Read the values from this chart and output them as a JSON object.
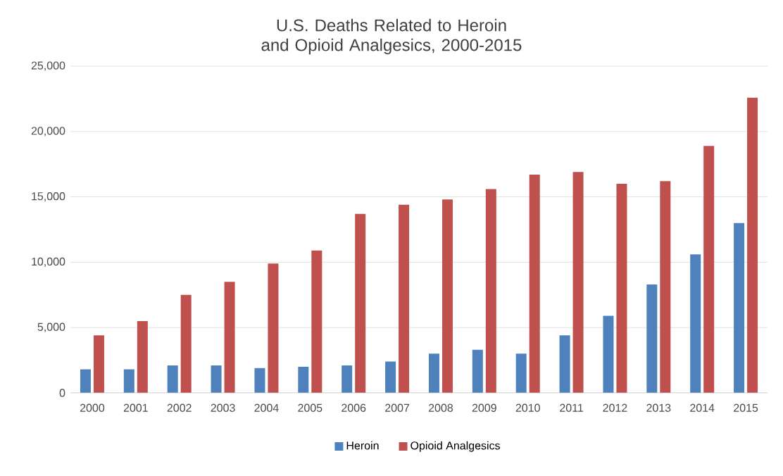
{
  "chart_data": {
    "type": "bar",
    "title": "U.S. Deaths Related to Heroin and Opioid Analgesics, 2000-2015",
    "categories": [
      "2000",
      "2001",
      "2002",
      "2003",
      "2004",
      "2005",
      "2006",
      "2007",
      "2008",
      "2009",
      "2010",
      "2011",
      "2012",
      "2013",
      "2014",
      "2015"
    ],
    "series": [
      {
        "name": "Heroin",
        "color": "#4f81bd",
        "values": [
          1800,
          1800,
          2100,
          2100,
          1900,
          2000,
          2100,
          2400,
          3000,
          3300,
          3000,
          4400,
          5900,
          8300,
          10600,
          13000
        ]
      },
      {
        "name": "Opioid Analgesics",
        "color": "#c0504d",
        "values": [
          4400,
          5500,
          7500,
          8500,
          9900,
          10900,
          13700,
          14400,
          14800,
          15600,
          16700,
          16900,
          16000,
          16200,
          18900,
          22600
        ]
      }
    ],
    "ylim": [
      0,
      25000
    ],
    "yticks": [
      {
        "value": 0,
        "label": "0"
      },
      {
        "value": 5000,
        "label": "5,000"
      },
      {
        "value": 10000,
        "label": "10,000"
      },
      {
        "value": 15000,
        "label": "15,000"
      },
      {
        "value": 20000,
        "label": "20,000"
      },
      {
        "value": 25000,
        "label": "25,000"
      }
    ],
    "grid": "y",
    "legend": "bottom"
  }
}
